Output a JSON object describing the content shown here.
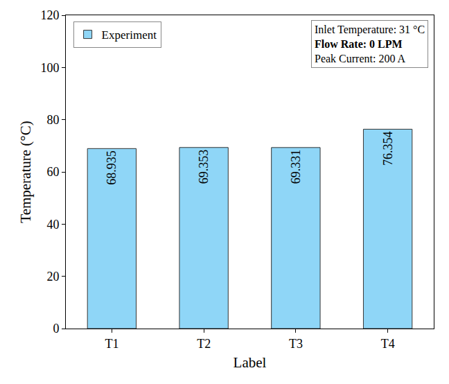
{
  "chart_data": {
    "type": "bar",
    "x_label": "Label",
    "y_label": "Temperature (°C)",
    "categories": [
      "T1",
      "T2",
      "T3",
      "T4"
    ],
    "series": [
      {
        "name": "Experiment",
        "color": "#8fd6f7",
        "values": [
          68.935,
          69.353,
          69.331,
          76.354
        ]
      }
    ],
    "ylim": [
      0,
      120
    ],
    "yticks": [
      0,
      20,
      40,
      60,
      80,
      100,
      120
    ],
    "annotations": [
      "Inlet Temperature: 31 °C",
      "Flow Rate: 0 LPM",
      "Peak Current: 200 A"
    ],
    "data_labels": true,
    "legend": "upper left",
    "grid": false
  }
}
